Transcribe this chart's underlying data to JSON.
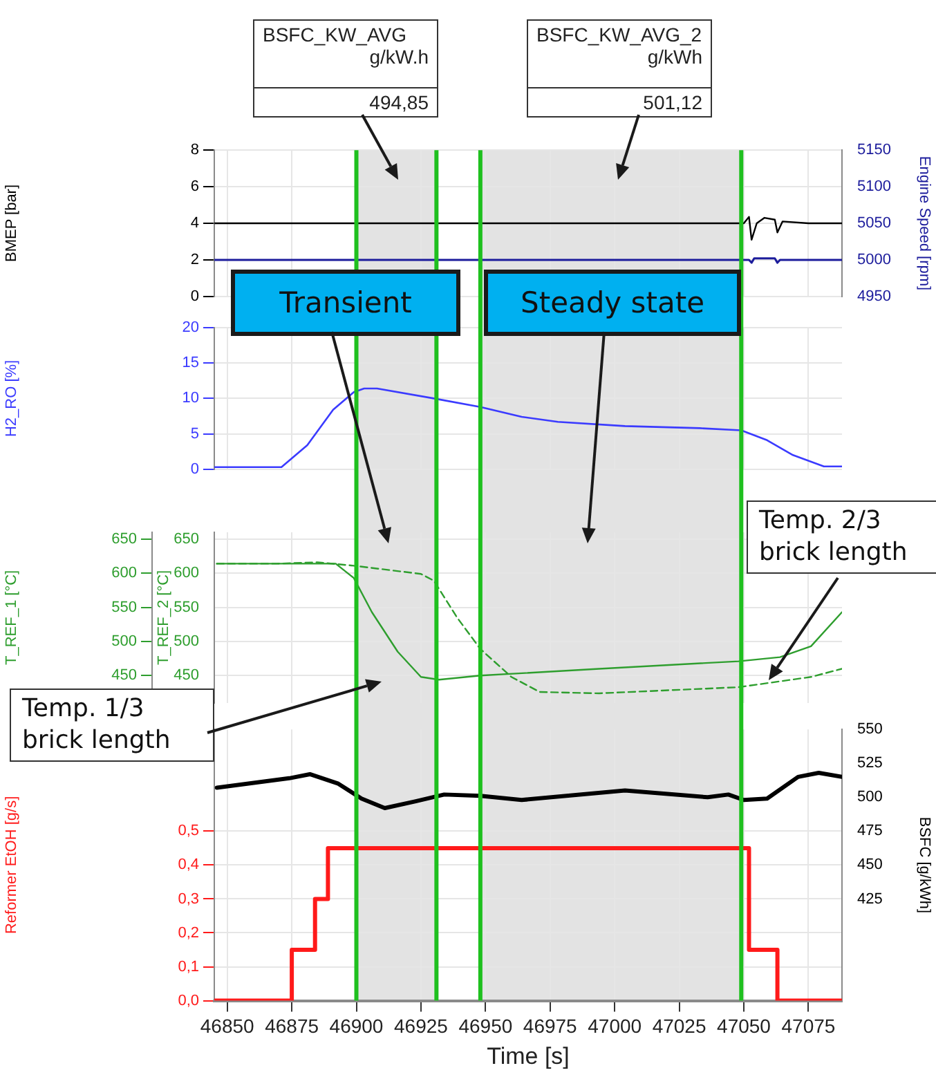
{
  "chart_data": [
    {
      "type": "line",
      "ylabel": "BMEP [bar]",
      "y2label": "Engine Speed [rpm]",
      "xlim": [
        46845,
        47088
      ],
      "xticks": [
        46850,
        46875,
        46900,
        46925,
        46950,
        46975,
        47000,
        47025,
        47050,
        47075
      ],
      "tick_labels": "y",
      "ylim": [
        0,
        8
      ],
      "yticks": [
        0,
        2,
        4,
        6,
        8
      ],
      "y2lim": [
        4950,
        5150
      ],
      "y2ticks": [
        4950,
        5000,
        5050,
        5100,
        5150
      ],
      "grid": true,
      "bands": [
        {
          "axis": "x",
          "from": 46900,
          "to": 46931,
          "color": "#e3e3e3"
        },
        {
          "axis": "x",
          "from": 46948,
          "to": 47049,
          "color": "#e3e3e3"
        }
      ],
      "ref_lines": [
        {
          "axis": "x",
          "value": 46900,
          "color": "#1fc01f"
        },
        {
          "axis": "x",
          "value": 46931,
          "color": "#1fc01f"
        },
        {
          "axis": "x",
          "value": 46948,
          "color": "#1fc01f"
        },
        {
          "axis": "x",
          "value": 47049,
          "color": "#1fc01f"
        }
      ],
      "annotations": [
        "BSFC_KW_AVG",
        "g/kW.h",
        "494,85",
        "BSFC_KW_AVG_2",
        "g/kWh",
        "501,12",
        "Transient",
        "Steady state"
      ],
      "series": [
        {
          "color": "#000000",
          "x": [
            46845,
            47050,
            47052,
            47053,
            47055,
            47058,
            47062,
            47063,
            47065,
            47075,
            47088
          ],
          "values": [
            4.0,
            4.0,
            4.35,
            3.1,
            4.0,
            4.3,
            4.2,
            3.5,
            4.1,
            4.0,
            4.0
          ]
        },
        {
          "color": "#1c1c9c",
          "axis": "y2",
          "x": [
            46845,
            47052,
            47053,
            47054,
            47062,
            47063,
            47064,
            47088
          ],
          "values": [
            5000,
            5000,
            4996,
            5002,
            5002,
            4996,
            5000,
            5000
          ]
        }
      ]
    },
    {
      "type": "line",
      "ylabel": "H2_RO [%]",
      "xlim": [
        46845,
        47088
      ],
      "xticks": [
        46850,
        46875,
        46900,
        46925,
        46950,
        46975,
        47000,
        47025,
        47050,
        47075
      ],
      "tick_labels": "y",
      "ylim": [
        0,
        20
      ],
      "yticks": [
        0,
        5,
        10,
        15,
        20
      ],
      "grid": true,
      "bands": [
        {
          "axis": "x",
          "from": 46900,
          "to": 46931,
          "color": "#e3e3e3"
        },
        {
          "axis": "x",
          "from": 46948,
          "to": 47049,
          "color": "#e3e3e3"
        }
      ],
      "ref_lines": [
        {
          "axis": "x",
          "value": 46900,
          "color": "#1fc01f"
        },
        {
          "axis": "x",
          "value": 46931,
          "color": "#1fc01f"
        },
        {
          "axis": "x",
          "value": 46948,
          "color": "#1fc01f"
        },
        {
          "axis": "x",
          "value": 47049,
          "color": "#1fc01f"
        }
      ],
      "series": [
        {
          "color": "#3b3bff",
          "x": [
            46845,
            46871,
            46881,
            46891,
            46899,
            46903,
            46908,
            46930,
            46948,
            46964,
            46978,
            47004,
            47033,
            47049,
            47059,
            47069,
            47081,
            47088
          ],
          "values": [
            0.3,
            0.3,
            3.4,
            8.4,
            10.9,
            11.4,
            11.4,
            10.0,
            8.8,
            7.4,
            6.7,
            6.1,
            5.8,
            5.5,
            4.1,
            2.0,
            0.4,
            0.4
          ]
        }
      ]
    },
    {
      "type": "line",
      "ylabel": "T_REF_1 [°C]",
      "y2label": "T_REF_2 [°C]",
      "xlim": [
        46845,
        47088
      ],
      "xticks": [
        46850,
        46875,
        46900,
        46925,
        46950,
        46975,
        47000,
        47025,
        47050,
        47075
      ],
      "tick_labels": "y",
      "ylim": [
        410,
        660
      ],
      "yticks": [
        450,
        500,
        550,
        600,
        650
      ],
      "y2lim": [
        410,
        660
      ],
      "y2ticks": [
        450,
        500,
        550,
        600,
        650
      ],
      "grid": true,
      "bands": [
        {
          "axis": "x",
          "from": 46900,
          "to": 46931,
          "color": "#e3e3e3"
        },
        {
          "axis": "x",
          "from": 46948,
          "to": 47049,
          "color": "#e3e3e3"
        }
      ],
      "ref_lines": [
        {
          "axis": "x",
          "value": 46900,
          "color": "#1fc01f"
        },
        {
          "axis": "x",
          "value": 46931,
          "color": "#1fc01f"
        },
        {
          "axis": "x",
          "value": 46948,
          "color": "#1fc01f"
        },
        {
          "axis": "x",
          "value": 47049,
          "color": "#1fc01f"
        }
      ],
      "annotations": [
        "Temp. 1/3 brick length",
        "Temp. 2/3 brick length"
      ],
      "series": [
        {
          "color": "#2e9e2e",
          "line_style": "solid",
          "x": [
            46846,
            46892,
            46899,
            46906,
            46916,
            46925,
            46932,
            46948,
            46994,
            47048,
            47064,
            47076,
            47088
          ],
          "values": [
            614,
            614,
            593,
            543,
            485,
            448,
            444,
            450,
            460,
            471,
            477,
            493,
            543
          ]
        },
        {
          "color": "#2e9e2e",
          "line_style": "dashed",
          "axis": "y2",
          "x": [
            46846,
            46869,
            46885,
            46899,
            46925,
            46930,
            46939,
            46948,
            46960,
            46971,
            46994,
            47048,
            47076,
            47088
          ],
          "values": [
            614,
            614,
            616,
            611,
            599,
            589,
            535,
            489,
            448,
            426,
            424,
            433,
            448,
            460
          ]
        }
      ]
    },
    {
      "type": "line",
      "ylabel": "Reformer EtOH [g/s]",
      "y2label": "BSFC [g/kWh]",
      "xlabel": "Time [s]",
      "xlim": [
        46845,
        47088
      ],
      "xticks": [
        46850,
        46875,
        46900,
        46925,
        46950,
        46975,
        47000,
        47025,
        47050,
        47075
      ],
      "ylim": [
        0,
        0.8
      ],
      "yticks": [
        {
          "value": 0,
          "label": "0,0"
        },
        {
          "value": 0.1,
          "label": "0,1"
        },
        {
          "value": 0.2,
          "label": "0,2"
        },
        {
          "value": 0.3,
          "label": "0,3"
        },
        {
          "value": 0.4,
          "label": "0,4"
        },
        {
          "value": 0.5,
          "label": "0,5"
        }
      ],
      "y2lim": [
        350,
        550
      ],
      "y2ticks": [
        425,
        450,
        475,
        500,
        525,
        550
      ],
      "grid": true,
      "bands": [
        {
          "axis": "x",
          "from": 46900,
          "to": 46931,
          "color": "#e3e3e3"
        },
        {
          "axis": "x",
          "from": 46948,
          "to": 47049,
          "color": "#e3e3e3"
        }
      ],
      "ref_lines": [
        {
          "axis": "x",
          "value": 46900,
          "color": "#1fc01f"
        },
        {
          "axis": "x",
          "value": 46931,
          "color": "#1fc01f"
        },
        {
          "axis": "x",
          "value": 46948,
          "color": "#1fc01f"
        },
        {
          "axis": "x",
          "value": 47049,
          "color": "#1fc01f"
        }
      ],
      "series": [
        {
          "type": "step",
          "color": "#ff1a1a",
          "x": [
            46845,
            46875,
            46884,
            46889,
            47052,
            47063,
            47088
          ],
          "values": [
            0,
            0.15,
            0.3,
            0.45,
            0.15,
            0,
            0
          ]
        },
        {
          "color": "#000000",
          "axis": "y2",
          "x": [
            46846,
            46874,
            46882,
            46893,
            46902,
            46911,
            46923,
            46934,
            46948,
            46964,
            47004,
            47036,
            47044,
            47050,
            47059,
            47071,
            47079,
            47088
          ],
          "values": [
            507,
            514,
            517,
            510,
            499,
            492,
            497,
            502,
            501,
            498,
            505,
            500,
            502,
            498,
            499,
            515,
            518,
            515
          ]
        }
      ]
    }
  ]
}
